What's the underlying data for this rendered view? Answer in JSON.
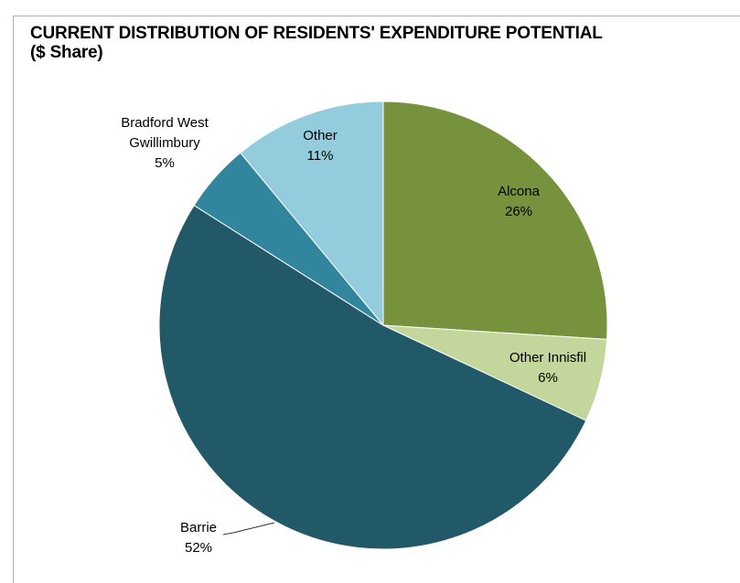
{
  "chart_data": {
    "type": "pie",
    "title_line1": "CURRENT DISTRIBUTION OF RESIDENTS' EXPENDITURE POTENTIAL",
    "title_line2": "($ Share)",
    "slices": [
      {
        "name": "Alcona",
        "label_lines": [
          "Alcona",
          "26%"
        ],
        "value": 26,
        "color": "#76923c"
      },
      {
        "name": "Other Innisfil",
        "label_lines": [
          "Other Innisfil",
          "6%"
        ],
        "value": 6,
        "color": "#c3d69b"
      },
      {
        "name": "Barrie",
        "label_lines": [
          "Barrie",
          "52%"
        ],
        "value": 52,
        "color": "#215968"
      },
      {
        "name": "Bradford West Gwillimbury",
        "label_lines": [
          "Bradford West",
          "Gwillimbury",
          "5%"
        ],
        "value": 5,
        "color": "#31859c"
      },
      {
        "name": "Other",
        "label_lines": [
          "Other",
          "11%"
        ],
        "value": 11,
        "color": "#93cddd"
      }
    ]
  }
}
